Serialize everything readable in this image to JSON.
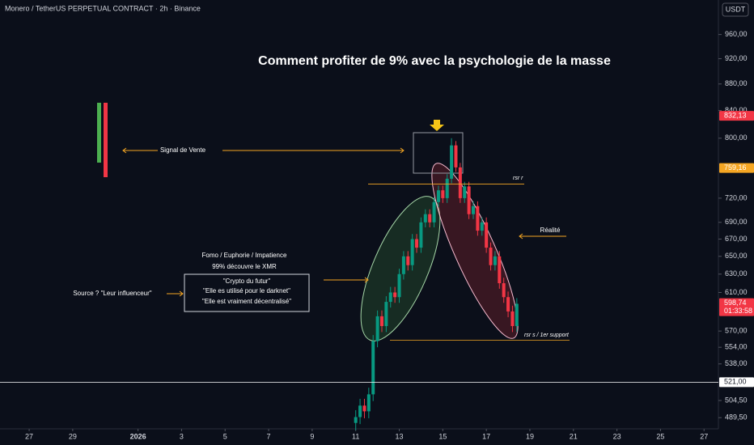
{
  "chart_data": {
    "type": "candlestick",
    "header": "Monero / TetherUS PERPETUAL CONTRACT · 2h · Binance",
    "currency": "USDT",
    "title": "Comment profiter de 9% avec la psychologie de la masse",
    "log_scale": true,
    "up_color": "#089981",
    "down_color": "#f23645",
    "x": [
      15.0,
      15.2,
      15.4,
      15.6,
      15.8,
      16.0,
      16.2,
      16.4,
      16.6,
      16.8,
      17.0,
      17.2,
      17.4,
      17.6,
      17.8,
      18.0,
      18.2,
      18.4,
      18.6,
      18.8,
      19.0,
      19.2,
      19.4,
      19.6,
      19.8,
      20.0,
      20.2,
      20.4,
      20.6,
      20.8,
      21.0,
      21.2,
      21.4,
      21.6,
      21.8,
      22.0,
      22.2,
      22.4
    ],
    "open": [
      485,
      490,
      500,
      495,
      510,
      560,
      585,
      575,
      600,
      610,
      605,
      630,
      650,
      640,
      670,
      660,
      690,
      700,
      690,
      715,
      730,
      720,
      745,
      790,
      760,
      720,
      735,
      700,
      710,
      680,
      690,
      660,
      640,
      650,
      620,
      605,
      590,
      575
    ],
    "high": [
      496,
      506,
      506,
      516,
      566,
      591,
      591,
      606,
      616,
      616,
      636,
      656,
      656,
      676,
      676,
      696,
      706,
      706,
      721,
      736,
      736,
      751,
      800,
      796,
      766,
      741,
      741,
      716,
      716,
      696,
      696,
      666,
      656,
      656,
      626,
      611,
      596,
      604
    ],
    "low": [
      479,
      484,
      489,
      489,
      504,
      554,
      569,
      569,
      594,
      599,
      599,
      624,
      634,
      634,
      654,
      654,
      684,
      684,
      684,
      709,
      714,
      714,
      739,
      754,
      714,
      714,
      694,
      694,
      674,
      674,
      654,
      634,
      634,
      614,
      599,
      584,
      569,
      569
    ],
    "close": [
      490,
      500,
      495,
      510,
      560,
      585,
      575,
      600,
      610,
      605,
      630,
      650,
      640,
      670,
      660,
      690,
      700,
      690,
      715,
      730,
      720,
      745,
      790,
      760,
      720,
      735,
      700,
      710,
      680,
      690,
      660,
      640,
      650,
      620,
      605,
      590,
      575,
      598
    ],
    "xlim": [
      -1.34,
      31.66
    ],
    "xticks": [
      {
        "value": 0,
        "label": "27"
      },
      {
        "value": 2,
        "label": "29"
      },
      {
        "value": 5,
        "label": "2026"
      },
      {
        "value": 7,
        "label": "3"
      },
      {
        "value": 9,
        "label": "5"
      },
      {
        "value": 11,
        "label": "7"
      },
      {
        "value": 13,
        "label": "9"
      },
      {
        "value": 15,
        "label": "11"
      },
      {
        "value": 17,
        "label": "13"
      },
      {
        "value": 19,
        "label": "15"
      },
      {
        "value": 21,
        "label": "17"
      },
      {
        "value": 23,
        "label": "19"
      },
      {
        "value": 25,
        "label": "21"
      },
      {
        "value": 27,
        "label": "23"
      },
      {
        "value": 29,
        "label": "25"
      },
      {
        "value": 31,
        "label": "27"
      }
    ],
    "ylim": [
      480,
      1020
    ],
    "yticks": [
      {
        "value": 960,
        "label": "960,00"
      },
      {
        "value": 920,
        "label": "920,00"
      },
      {
        "value": 880,
        "label": "880,00"
      },
      {
        "value": 840,
        "label": "840,00"
      },
      {
        "value": 800,
        "label": "800,00"
      },
      {
        "value": 720,
        "label": "720,00"
      },
      {
        "value": 690,
        "label": "690,00"
      },
      {
        "value": 670,
        "label": "670,00"
      },
      {
        "value": 650,
        "label": "650,00"
      },
      {
        "value": 630,
        "label": "630,00"
      },
      {
        "value": 610,
        "label": "610,00"
      },
      {
        "value": 570,
        "label": "570,00"
      },
      {
        "value": 554,
        "label": "554,00"
      },
      {
        "value": 538,
        "label": "538,00"
      },
      {
        "value": 504.5,
        "label": "504,50"
      },
      {
        "value": 489.5,
        "label": "489,50"
      }
    ],
    "price_tags": [
      {
        "value": 832.13,
        "label": "832,13",
        "color": "#f23645"
      },
      {
        "value": 759.16,
        "label": "759,16",
        "color": "#f5a623"
      },
      {
        "value": 598.74,
        "label": "598,74",
        "color": "#f23645",
        "countdown": "01:33:58"
      },
      {
        "value": 521,
        "label": "521,00",
        "color": "#ffffff"
      }
    ],
    "annotations": [
      {
        "text": "Signal de Vente"
      },
      {
        "text": "Fomo / Euphorie / Impatience"
      },
      {
        "text": "99% découvre le XMR"
      },
      {
        "text": "\"Crypto du futur\""
      },
      {
        "text": "\"Elle es utilisé pour le darknet\""
      },
      {
        "text": "\"Elle est vraiment décentralisé\""
      },
      {
        "text": "Source ? \"Leur influenceur\""
      },
      {
        "text": "Réalité"
      },
      {
        "text": "rsr r",
        "level": 738
      },
      {
        "text": "rsr s / 1er support",
        "level": 561
      }
    ]
  }
}
